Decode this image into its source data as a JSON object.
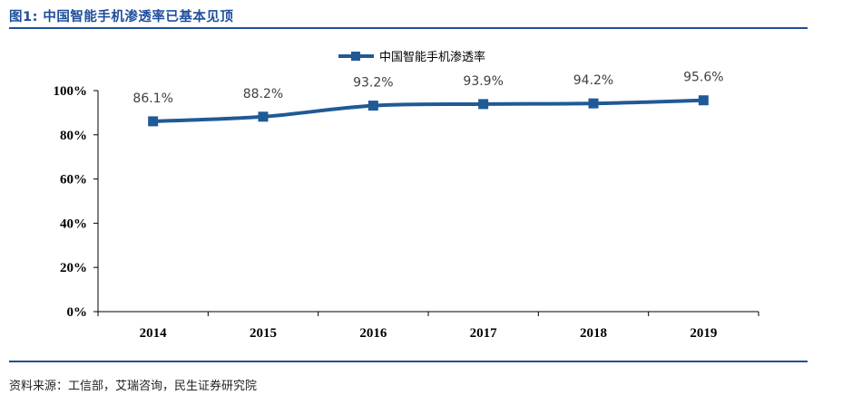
{
  "figure": {
    "title": "图1:  中国智能手机渗透率已基本见顶",
    "source": "资料来源：工信部，艾瑞咨询，民生证券研究院"
  },
  "colors": {
    "series": "#1f5a96",
    "rule": "#1f4e9b",
    "axis": "#000000"
  },
  "chart_data": {
    "type": "line",
    "title": "",
    "xlabel": "",
    "ylabel": "",
    "categories": [
      "2014",
      "2015",
      "2016",
      "2017",
      "2018",
      "2019"
    ],
    "series": [
      {
        "name": "中国智能手机渗透率",
        "values": [
          86.1,
          88.2,
          93.2,
          93.9,
          94.2,
          95.6
        ],
        "labels": [
          "86.1%",
          "88.2%",
          "93.2%",
          "93.9%",
          "94.2%",
          "95.6%"
        ],
        "marker": "square"
      }
    ],
    "ylim": [
      0,
      100
    ],
    "yticks": [
      0,
      20,
      40,
      60,
      80,
      100
    ],
    "ytick_labels": [
      "0%",
      "20%",
      "40%",
      "60%",
      "80%",
      "100%"
    ],
    "grid": false,
    "legend": "top-center"
  }
}
